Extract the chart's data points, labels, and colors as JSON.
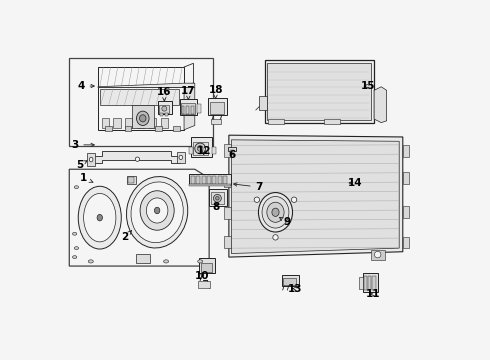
{
  "bg_color": "#f5f5f5",
  "line_color": "#222222",
  "text_color": "#000000",
  "fig_width": 4.9,
  "fig_height": 3.6,
  "dpi": 100,
  "label_pts": {
    "1": [
      0.055,
      0.415,
      0.1,
      0.435
    ],
    "2": [
      0.175,
      0.305,
      0.2,
      0.325
    ],
    "3": [
      0.03,
      0.595,
      0.105,
      0.595
    ],
    "4": [
      0.055,
      0.755,
      0.095,
      0.755
    ],
    "5": [
      0.045,
      0.535,
      0.105,
      0.535
    ],
    "6": [
      0.475,
      0.565,
      0.478,
      0.575
    ],
    "7": [
      0.545,
      0.48,
      0.505,
      0.48
    ],
    "8": [
      0.425,
      0.435,
      0.425,
      0.455
    ],
    "9": [
      0.615,
      0.385,
      0.588,
      0.4
    ],
    "10": [
      0.385,
      0.235,
      0.388,
      0.255
    ],
    "11": [
      0.855,
      0.185,
      0.838,
      0.185
    ],
    "12": [
      0.39,
      0.58,
      0.39,
      0.558
    ],
    "13": [
      0.64,
      0.195,
      0.622,
      0.195
    ],
    "14": [
      0.8,
      0.49,
      0.775,
      0.49
    ],
    "15": [
      0.84,
      0.76,
      0.82,
      0.76
    ],
    "16": [
      0.28,
      0.745,
      0.28,
      0.72
    ],
    "17": [
      0.34,
      0.745,
      0.34,
      0.715
    ],
    "18": [
      0.415,
      0.75,
      0.415,
      0.72
    ]
  }
}
